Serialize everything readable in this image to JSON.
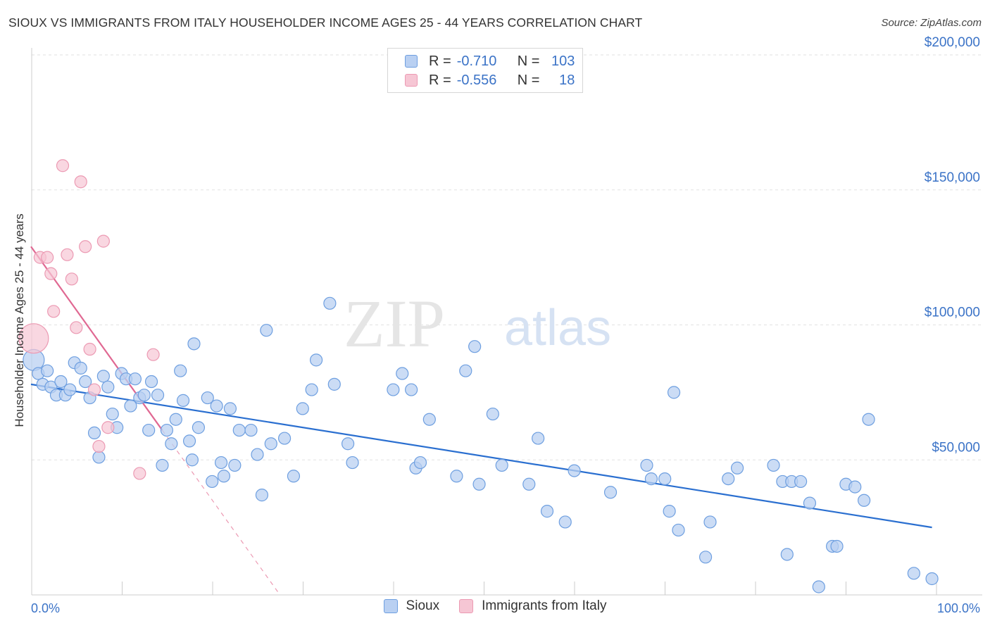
{
  "title": "SIOUX VS IMMIGRANTS FROM ITALY HOUSEHOLDER INCOME AGES 25 - 44 YEARS CORRELATION CHART",
  "source": "Source: ZipAtlas.com",
  "watermark": {
    "zip": "ZIP",
    "atlas": "atlas"
  },
  "legend_top": {
    "rows": [
      {
        "r_label": "R =",
        "r_value": "-0.710",
        "n_label": "N =",
        "n_value": "103"
      },
      {
        "r_label": "R =",
        "r_value": "-0.556",
        "n_label": "N =",
        "n_value": "18"
      }
    ]
  },
  "colors": {
    "sioux_fill": "#b9d0f2",
    "sioux_stroke": "#6e9fe0",
    "sioux_line": "#2a6fd0",
    "italy_fill": "#f6c6d4",
    "italy_stroke": "#ec9ab3",
    "italy_line": "#e06892",
    "axis_text": "#3b73c7",
    "grid": "#e2e2e2"
  },
  "chart_data": {
    "type": "scatter",
    "title": "SIOUX VS IMMIGRANTS FROM ITALY HOUSEHOLDER INCOME AGES 25 - 44 YEARS CORRELATION CHART",
    "xlabel": "",
    "ylabel": "Householder Income Ages 25 - 44 years",
    "xlim": [
      0,
      100
    ],
    "ylim": [
      0,
      205000
    ],
    "x_tick_labels": [
      "0.0%",
      "100.0%"
    ],
    "y_ticks": [
      50000,
      100000,
      150000,
      200000
    ],
    "y_tick_labels": [
      "$50,000",
      "$100,000",
      "$150,000",
      "$200,000"
    ],
    "grid": true,
    "legend_position": "bottom",
    "series": [
      {
        "name": "Sioux",
        "points": [
          [
            0.3,
            87000
          ],
          [
            0.8,
            82000
          ],
          [
            1.3,
            78000
          ],
          [
            1.8,
            83000
          ],
          [
            2.2,
            77000
          ],
          [
            2.8,
            74000
          ],
          [
            3.3,
            79000
          ],
          [
            3.8,
            74000
          ],
          [
            4.3,
            76000
          ],
          [
            4.8,
            86000
          ],
          [
            5.5,
            84000
          ],
          [
            6.0,
            79000
          ],
          [
            6.5,
            73000
          ],
          [
            7.0,
            60000
          ],
          [
            7.5,
            51000
          ],
          [
            8.0,
            81000
          ],
          [
            8.5,
            77000
          ],
          [
            9.0,
            67000
          ],
          [
            9.5,
            62000
          ],
          [
            10.0,
            82000
          ],
          [
            10.5,
            80000
          ],
          [
            11.0,
            70000
          ],
          [
            11.5,
            80000
          ],
          [
            12.0,
            73000
          ],
          [
            12.5,
            74000
          ],
          [
            13.0,
            61000
          ],
          [
            13.3,
            79000
          ],
          [
            14.0,
            74000
          ],
          [
            14.5,
            48000
          ],
          [
            15.0,
            61000
          ],
          [
            15.5,
            56000
          ],
          [
            16.0,
            65000
          ],
          [
            16.5,
            83000
          ],
          [
            16.8,
            72000
          ],
          [
            17.5,
            57000
          ],
          [
            17.8,
            50000
          ],
          [
            18.0,
            93000
          ],
          [
            18.5,
            62000
          ],
          [
            19.5,
            73000
          ],
          [
            20.0,
            42000
          ],
          [
            20.5,
            70000
          ],
          [
            21.0,
            49000
          ],
          [
            21.3,
            44000
          ],
          [
            22.0,
            69000
          ],
          [
            22.5,
            48000
          ],
          [
            23.0,
            61000
          ],
          [
            24.3,
            61000
          ],
          [
            25.0,
            52000
          ],
          [
            25.5,
            37000
          ],
          [
            26.0,
            98000
          ],
          [
            26.5,
            56000
          ],
          [
            28.0,
            58000
          ],
          [
            29.0,
            44000
          ],
          [
            30.0,
            69000
          ],
          [
            31.0,
            76000
          ],
          [
            31.5,
            87000
          ],
          [
            33.0,
            108000
          ],
          [
            33.5,
            78000
          ],
          [
            35.0,
            56000
          ],
          [
            35.5,
            49000
          ],
          [
            40.0,
            76000
          ],
          [
            41.0,
            82000
          ],
          [
            42.0,
            76000
          ],
          [
            42.5,
            47000
          ],
          [
            43.0,
            49000
          ],
          [
            44.0,
            65000
          ],
          [
            47.0,
            44000
          ],
          [
            48.0,
            83000
          ],
          [
            49.0,
            92000
          ],
          [
            49.5,
            41000
          ],
          [
            51.0,
            67000
          ],
          [
            52.0,
            48000
          ],
          [
            55.0,
            41000
          ],
          [
            56.0,
            58000
          ],
          [
            57.0,
            31000
          ],
          [
            59.0,
            27000
          ],
          [
            60.0,
            46000
          ],
          [
            64.0,
            38000
          ],
          [
            68.0,
            48000
          ],
          [
            68.5,
            43000
          ],
          [
            70.0,
            43000
          ],
          [
            70.5,
            31000
          ],
          [
            71.0,
            75000
          ],
          [
            71.5,
            24000
          ],
          [
            74.5,
            14000
          ],
          [
            75.0,
            27000
          ],
          [
            77.0,
            43000
          ],
          [
            78.0,
            47000
          ],
          [
            82.0,
            48000
          ],
          [
            83.0,
            42000
          ],
          [
            83.5,
            15000
          ],
          [
            84.0,
            42000
          ],
          [
            85.0,
            42000
          ],
          [
            86.0,
            34000
          ],
          [
            87.0,
            3000
          ],
          [
            88.5,
            18000
          ],
          [
            89.0,
            18000
          ],
          [
            90.0,
            41000
          ],
          [
            91.0,
            40000
          ],
          [
            92.0,
            35000
          ],
          [
            92.5,
            65000
          ],
          [
            97.5,
            8000
          ],
          [
            99.5,
            6000
          ]
        ],
        "trend": {
          "x": [
            0,
            99.5
          ],
          "y": [
            78000,
            25000
          ]
        }
      },
      {
        "name": "Immigrants from Italy",
        "points": [
          [
            0.3,
            95000
          ],
          [
            1.0,
            125000
          ],
          [
            1.8,
            125000
          ],
          [
            2.2,
            119000
          ],
          [
            2.5,
            105000
          ],
          [
            3.5,
            159000
          ],
          [
            4.0,
            126000
          ],
          [
            4.5,
            117000
          ],
          [
            5.0,
            99000
          ],
          [
            5.5,
            153000
          ],
          [
            6.0,
            129000
          ],
          [
            6.5,
            91000
          ],
          [
            7.0,
            76000
          ],
          [
            7.5,
            55000
          ],
          [
            8.0,
            131000
          ],
          [
            8.5,
            62000
          ],
          [
            12.0,
            45000
          ],
          [
            13.5,
            89000
          ]
        ],
        "trend": {
          "x": [
            0,
            14.5
          ],
          "y": [
            129000,
            61000
          ]
        },
        "trend_extension": {
          "x": [
            14.5,
            27.5
          ],
          "y": [
            61000,
            0
          ]
        }
      }
    ]
  }
}
